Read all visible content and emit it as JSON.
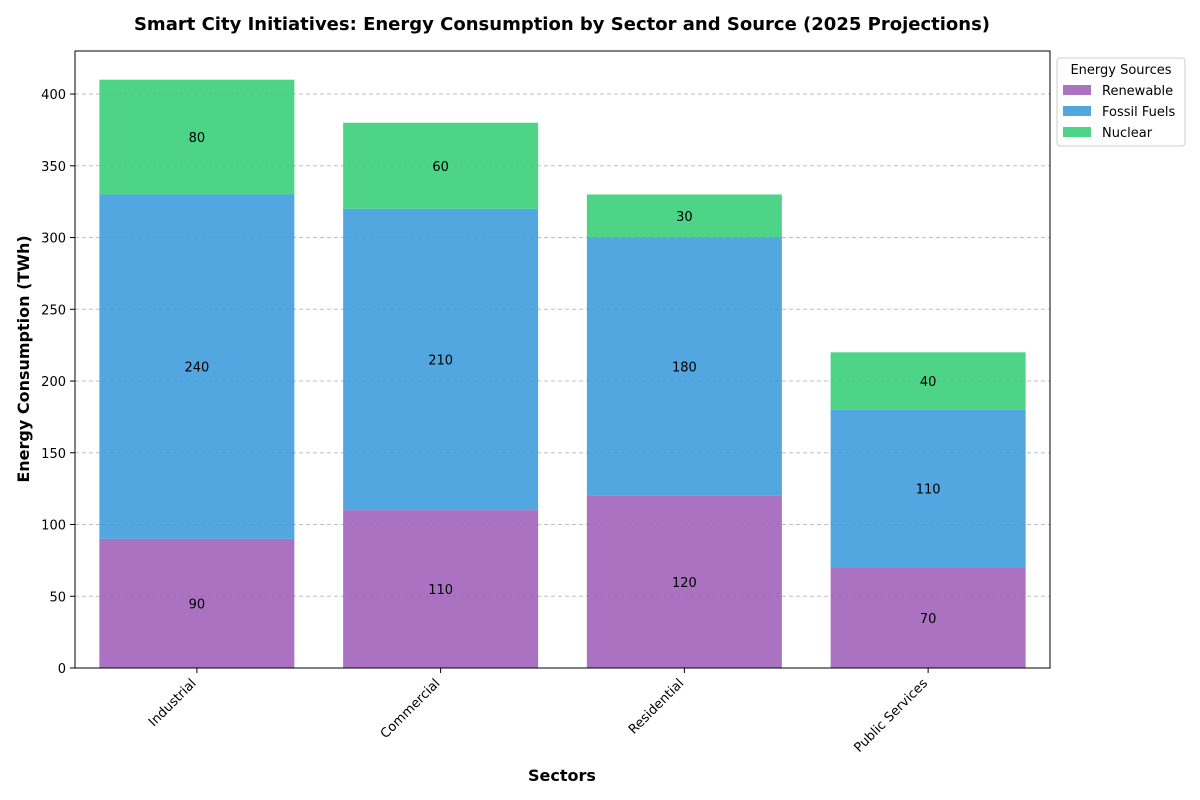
{
  "chart_data": {
    "type": "bar",
    "stacked": true,
    "title": "Smart City Initiatives: Energy Consumption by Sector and Source (2025 Projections)",
    "xlabel": "Sectors",
    "ylabel": "Energy Consumption (TWh)",
    "categories": [
      "Industrial",
      "Commercial",
      "Residential",
      "Public Services"
    ],
    "series": [
      {
        "name": "Renewable",
        "values": [
          90,
          110,
          120,
          70
        ],
        "color": "#9b59b6"
      },
      {
        "name": "Fossil Fuels",
        "values": [
          240,
          210,
          180,
          110
        ],
        "color": "#3498db"
      },
      {
        "name": "Nuclear",
        "values": [
          80,
          60,
          30,
          40
        ],
        "color": "#2ecc71"
      }
    ],
    "ylim": [
      0,
      430
    ],
    "yticks": [
      0,
      50,
      100,
      150,
      200,
      250,
      300,
      350,
      400
    ],
    "grid": "y-dashed",
    "legend": {
      "title": "Energy Sources",
      "placement": "outside-top-right"
    }
  }
}
